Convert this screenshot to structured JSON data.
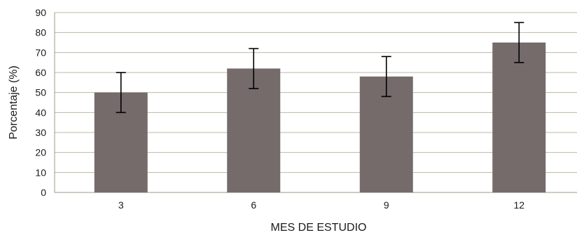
{
  "chart_data": {
    "type": "bar",
    "title": "",
    "xlabel": "MES DE ESTUDIO",
    "ylabel": "Porcentaje (%)",
    "categories": [
      "3",
      "6",
      "9",
      "12"
    ],
    "values": [
      50,
      62,
      58,
      75
    ],
    "error_bars": {
      "lower": [
        40,
        52,
        48,
        65
      ],
      "upper": [
        60,
        72,
        68,
        85
      ]
    },
    "ylim": [
      0,
      90
    ],
    "yticks": [
      "0",
      "10",
      "20",
      "30",
      "40",
      "50",
      "60",
      "70",
      "80",
      "90"
    ],
    "grid": true,
    "legend": "none",
    "colors": {
      "bar": "#756b6b",
      "gridline": "#b8b8a6",
      "axis": "#9a9a8a",
      "error_bar": "#000000"
    }
  }
}
